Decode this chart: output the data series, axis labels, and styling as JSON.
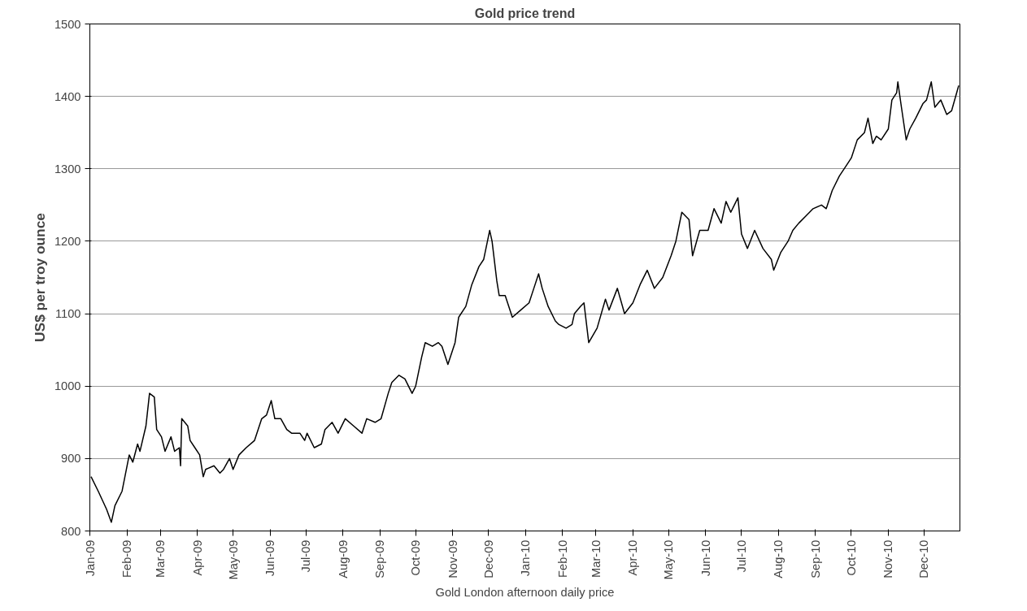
{
  "chart_data": {
    "type": "line",
    "title": "Gold price trend",
    "xlabel": "Gold London afternoon daily price",
    "ylabel": "US$ per troy ounce",
    "x": [
      "2009-01-02",
      "2009-01-08",
      "2009-01-15",
      "2009-01-19",
      "2009-01-22",
      "2009-01-28",
      "2009-02-03",
      "2009-02-06",
      "2009-02-10",
      "2009-02-12",
      "2009-02-17",
      "2009-02-20",
      "2009-02-24",
      "2009-02-26",
      "2009-03-02",
      "2009-03-05",
      "2009-03-10",
      "2009-03-13",
      "2009-03-17",
      "2009-03-18",
      "2009-03-19",
      "2009-03-24",
      "2009-03-26",
      "2009-03-30",
      "2009-04-03",
      "2009-04-06",
      "2009-04-08",
      "2009-04-15",
      "2009-04-20",
      "2009-04-23",
      "2009-04-28",
      "2009-05-01",
      "2009-05-06",
      "2009-05-12",
      "2009-05-19",
      "2009-05-25",
      "2009-05-29",
      "2009-06-02",
      "2009-06-05",
      "2009-06-10",
      "2009-06-15",
      "2009-06-19",
      "2009-06-26",
      "2009-06-30",
      "2009-07-02",
      "2009-07-08",
      "2009-07-14",
      "2009-07-17",
      "2009-07-23",
      "2009-07-28",
      "2009-08-03",
      "2009-08-10",
      "2009-08-17",
      "2009-08-21",
      "2009-08-28",
      "2009-09-02",
      "2009-09-08",
      "2009-09-11",
      "2009-09-17",
      "2009-09-22",
      "2009-09-28",
      "2009-10-01",
      "2009-10-06",
      "2009-10-09",
      "2009-10-15",
      "2009-10-20",
      "2009-10-23",
      "2009-10-28",
      "2009-11-03",
      "2009-11-06",
      "2009-11-12",
      "2009-11-17",
      "2009-11-23",
      "2009-11-27",
      "2009-12-02",
      "2009-12-04",
      "2009-12-08",
      "2009-12-10",
      "2009-12-15",
      "2009-12-21",
      "2009-12-28",
      "2010-01-04",
      "2010-01-08",
      "2010-01-12",
      "2010-01-15",
      "2010-01-20",
      "2010-01-26",
      "2010-01-29",
      "2010-02-04",
      "2010-02-09",
      "2010-02-11",
      "2010-02-16",
      "2010-02-19",
      "2010-02-23",
      "2010-03-02",
      "2010-03-09",
      "2010-03-12",
      "2010-03-19",
      "2010-03-25",
      "2010-04-01",
      "2010-04-07",
      "2010-04-13",
      "2010-04-19",
      "2010-04-26",
      "2010-05-03",
      "2010-05-07",
      "2010-05-12",
      "2010-05-18",
      "2010-05-21",
      "2010-05-27",
      "2010-06-03",
      "2010-06-08",
      "2010-06-14",
      "2010-06-18",
      "2010-06-22",
      "2010-06-28",
      "2010-07-01",
      "2010-07-06",
      "2010-07-12",
      "2010-07-19",
      "2010-07-26",
      "2010-07-28",
      "2010-08-03",
      "2010-08-09",
      "2010-08-13",
      "2010-08-18",
      "2010-08-24",
      "2010-08-30",
      "2010-09-06",
      "2010-09-10",
      "2010-09-15",
      "2010-09-21",
      "2010-09-27",
      "2010-10-01",
      "2010-10-06",
      "2010-10-12",
      "2010-10-15",
      "2010-10-19",
      "2010-10-22",
      "2010-10-26",
      "2010-11-01",
      "2010-11-04",
      "2010-11-08",
      "2010-11-09",
      "2010-11-12",
      "2010-11-16",
      "2010-11-19",
      "2010-11-24",
      "2010-11-30",
      "2010-12-03",
      "2010-12-07",
      "2010-12-10",
      "2010-12-15",
      "2010-12-20",
      "2010-12-24",
      "2010-12-30"
    ],
    "series": [
      {
        "color": "#000000",
        "values": [
          875,
          855,
          830,
          812,
          835,
          855,
          905,
          895,
          920,
          910,
          945,
          990,
          985,
          940,
          930,
          910,
          930,
          910,
          915,
          890,
          955,
          945,
          925,
          915,
          905,
          875,
          885,
          890,
          880,
          885,
          900,
          885,
          905,
          915,
          925,
          955,
          960,
          980,
          955,
          955,
          940,
          935,
          935,
          925,
          935,
          915,
          920,
          940,
          950,
          935,
          955,
          945,
          935,
          955,
          950,
          955,
          990,
          1005,
          1015,
          1010,
          990,
          1000,
          1040,
          1060,
          1055,
          1060,
          1055,
          1030,
          1060,
          1095,
          1110,
          1140,
          1165,
          1175,
          1215,
          1200,
          1145,
          1125,
          1125,
          1095,
          1105,
          1115,
          1135,
          1155,
          1135,
          1110,
          1090,
          1085,
          1080,
          1085,
          1100,
          1110,
          1115,
          1060,
          1080,
          1120,
          1105,
          1135,
          1100,
          1115,
          1140,
          1160,
          1135,
          1150,
          1180,
          1200,
          1240,
          1230,
          1180,
          1215,
          1215,
          1245,
          1225,
          1255,
          1240,
          1260,
          1210,
          1190,
          1215,
          1190,
          1175,
          1160,
          1185,
          1200,
          1215,
          1225,
          1235,
          1245,
          1250,
          1245,
          1270,
          1290,
          1305,
          1315,
          1340,
          1350,
          1370,
          1335,
          1345,
          1340,
          1355,
          1395,
          1405,
          1420,
          1385,
          1340,
          1355,
          1370,
          1390,
          1395,
          1420,
          1385,
          1395,
          1375,
          1380,
          1415
        ]
      }
    ],
    "xlim": [
      "2009-01-01",
      "2010-12-31"
    ],
    "xticks": [
      {
        "value": "2009-01-01",
        "label": "Jan-09"
      },
      {
        "value": "2009-02-01",
        "label": "Feb-09"
      },
      {
        "value": "2009-03-01",
        "label": "Mar-09"
      },
      {
        "value": "2009-04-01",
        "label": "Apr-09"
      },
      {
        "value": "2009-05-01",
        "label": "May-09"
      },
      {
        "value": "2009-06-01",
        "label": "Jun-09"
      },
      {
        "value": "2009-07-01",
        "label": "Jul-09"
      },
      {
        "value": "2009-08-01",
        "label": "Aug-09"
      },
      {
        "value": "2009-09-01",
        "label": "Sep-09"
      },
      {
        "value": "2009-10-01",
        "label": "Oct-09"
      },
      {
        "value": "2009-11-01",
        "label": "Nov-09"
      },
      {
        "value": "2009-12-01",
        "label": "Dec-09"
      },
      {
        "value": "2010-01-01",
        "label": "Jan-10"
      },
      {
        "value": "2010-02-01",
        "label": "Feb-10"
      },
      {
        "value": "2010-03-01",
        "label": "Mar-10"
      },
      {
        "value": "2010-04-01",
        "label": "Apr-10"
      },
      {
        "value": "2010-05-01",
        "label": "May-10"
      },
      {
        "value": "2010-06-01",
        "label": "Jun-10"
      },
      {
        "value": "2010-07-01",
        "label": "Jul-10"
      },
      {
        "value": "2010-08-01",
        "label": "Aug-10"
      },
      {
        "value": "2010-09-01",
        "label": "Sep-10"
      },
      {
        "value": "2010-10-01",
        "label": "Oct-10"
      },
      {
        "value": "2010-11-01",
        "label": "Nov-10"
      },
      {
        "value": "2010-12-01",
        "label": "Dec-10"
      }
    ],
    "ylim": [
      800,
      1500
    ],
    "yticks": [
      800,
      900,
      1000,
      1100,
      1200,
      1300,
      1400,
      1500
    ],
    "grid": "y",
    "marker": "none",
    "line_style": "solid"
  }
}
